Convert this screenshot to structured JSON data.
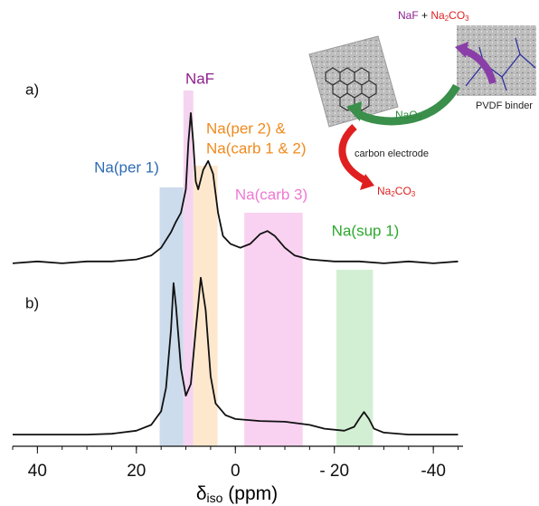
{
  "chart_data": {
    "type": "line",
    "x_label": {
      "symbol": "δ",
      "subscript": "iso",
      "unit": "(ppm)"
    },
    "xlim": [
      45,
      -46
    ],
    "xticks": [
      40,
      20,
      0,
      {
        "value": -20,
        "label": "- 20"
      },
      -40
    ],
    "ylim": [
      0,
      100
    ],
    "series": [
      {
        "name": "a)",
        "color": "#111111",
        "x": [
          45,
          40,
          35,
          30,
          25,
          20,
          17,
          15,
          13,
          12,
          11,
          10,
          9.5,
          9,
          8.5,
          8,
          7.5,
          6.5,
          5.5,
          4.5,
          3.5,
          2.5,
          1,
          -1,
          -3,
          -5,
          -6.5,
          -8,
          -10,
          -12,
          -15,
          -20,
          -25,
          -30,
          -35,
          -40,
          -45
        ],
        "values": [
          47,
          47.5,
          47,
          47.5,
          47.5,
          48,
          49,
          51,
          55,
          57.7,
          60,
          66,
          78,
          85.6,
          78,
          68,
          66,
          71,
          73.3,
          70,
          60,
          54,
          52,
          51,
          52,
          54.5,
          55.3,
          54,
          51,
          49,
          48,
          47.5,
          47.5,
          47,
          47.5,
          47,
          47.5
        ]
      },
      {
        "name": "b)",
        "color": "#111111",
        "x": [
          45,
          40,
          30,
          25,
          20,
          17,
          15,
          14,
          13,
          12.5,
          12,
          11,
          10,
          9,
          8,
          7,
          6,
          5,
          4,
          2,
          0,
          -5,
          -10,
          -15,
          -18,
          -22,
          -24,
          -25,
          -26,
          -27,
          -28,
          -30,
          -35,
          -40,
          -45
        ],
        "values": [
          3,
          3,
          3,
          3.2,
          4,
          5.5,
          9,
          15,
          30,
          41.9,
          36,
          20,
          13,
          16,
          30,
          43.3,
          35,
          18,
          11,
          8,
          7,
          6.5,
          6.3,
          5.5,
          4.5,
          4,
          5,
          7,
          8.8,
          7,
          4.5,
          3.5,
          3,
          3,
          3
        ]
      }
    ],
    "regions": [
      {
        "label": "Na(per 1)",
        "xrange": [
          15.3,
          10.5
        ],
        "color": "#c3d6ea",
        "label_color": "#2f6cb3"
      },
      {
        "label": "NaF",
        "xrange": [
          10.5,
          8.5
        ],
        "color": "#f3cdee",
        "label_color": "#8e1f8e"
      },
      {
        "label": [
          "Na(per 2) &",
          "Na(carb 1 & 2)"
        ],
        "xrange": [
          8.5,
          3.6
        ],
        "color": "#fde4c6",
        "label_color": "#f08a1e"
      },
      {
        "label": "Na(carb 3)",
        "xrange": [
          -1.8,
          -13.6
        ],
        "color": "#f8caee",
        "label_color": "#ef78d4"
      },
      {
        "label": "Na(sup 1)",
        "xrange": [
          -20.4,
          -27.8
        ],
        "color": "#cbeccb",
        "label_color": "#2ea82e"
      }
    ],
    "inset": {
      "product_top": {
        "a": "NaF",
        "plus": "+",
        "formula": [
          "Na",
          "2",
          "CO",
          "3"
        ]
      },
      "center": [
        "NaO",
        "2"
      ],
      "electrode": "carbon electrode",
      "product_bottom": [
        "Na",
        "2",
        "CO",
        "3"
      ],
      "binder": "PVDF binder"
    }
  }
}
